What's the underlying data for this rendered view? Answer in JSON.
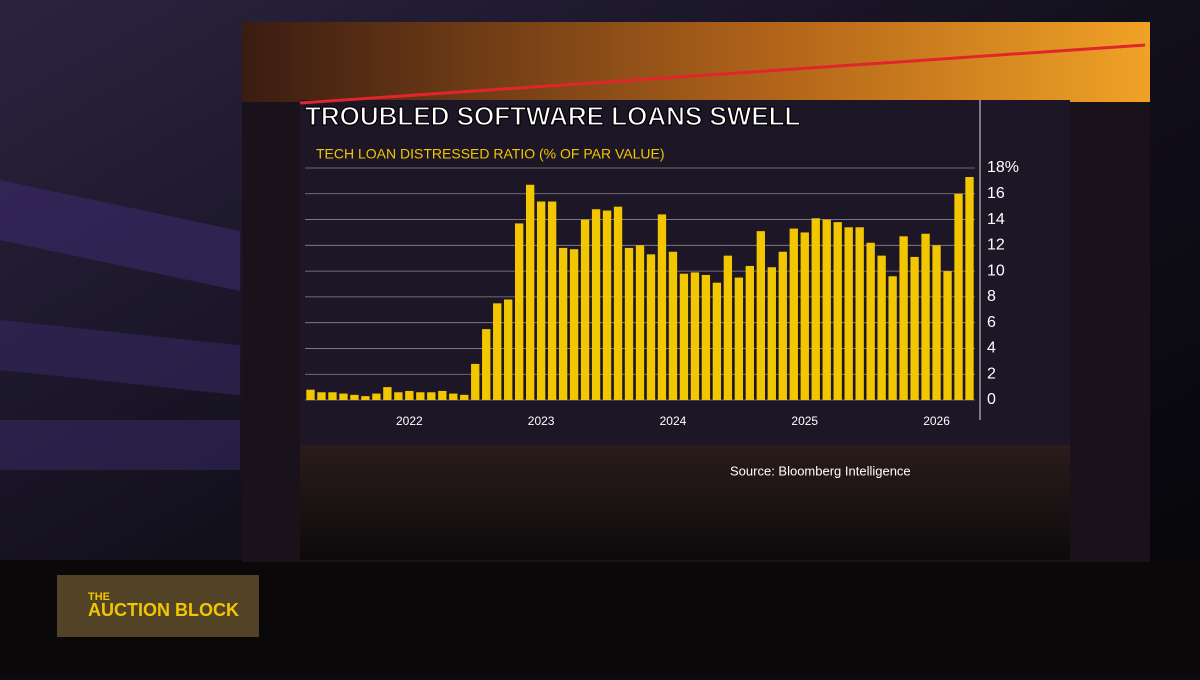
{
  "chart_data": {
    "type": "bar",
    "title": "TROUBLED SOFTWARE LOANS SWELL",
    "subtitle": "TECH LOAN DISTRESSED RATIO (% OF PAR VALUE)",
    "source": "Source: Bloomberg Intelligence",
    "categories": [
      null,
      null,
      null,
      null,
      null,
      null,
      null,
      null,
      null,
      "2022",
      null,
      null,
      null,
      null,
      null,
      null,
      null,
      null,
      null,
      null,
      null,
      "2023",
      null,
      null,
      null,
      null,
      null,
      null,
      null,
      null,
      null,
      null,
      null,
      "2024",
      null,
      null,
      null,
      null,
      null,
      null,
      null,
      null,
      null,
      null,
      null,
      "2025",
      null,
      null,
      null,
      null,
      null,
      null,
      null,
      null,
      null,
      null,
      null,
      "2026",
      null,
      null,
      null
    ],
    "values": [
      0.8,
      0.6,
      0.6,
      0.5,
      0.4,
      0.3,
      0.5,
      1.0,
      0.6,
      0.7,
      0.6,
      0.6,
      0.7,
      0.5,
      0.4,
      2.8,
      5.5,
      7.5,
      7.8,
      13.7,
      16.7,
      15.4,
      15.4,
      11.8,
      11.7,
      14,
      14.8,
      14.7,
      15,
      11.8,
      12,
      11.3,
      14.4,
      11.5,
      9.8,
      9.9,
      9.7,
      9.1,
      11.2,
      9.5,
      10.4,
      13.1,
      10.3,
      11.5,
      13.3,
      13,
      14.1,
      14,
      13.8,
      13.4,
      13.4,
      12.2,
      11.2,
      9.6,
      12.7,
      11.1,
      12.9,
      12,
      10,
      16,
      17.3
    ],
    "color": "#f2c600",
    "ylim": [
      0,
      18
    ],
    "yticks": [
      0,
      2,
      4,
      6,
      8,
      10,
      12,
      14,
      16,
      {
        "value": 18,
        "label": "18%"
      }
    ],
    "grid": true
  },
  "program": {
    "line1": "THE",
    "line2": "AUCTION BLOCK"
  }
}
